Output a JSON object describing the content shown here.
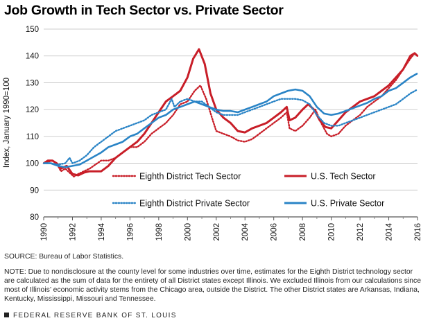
{
  "chart_data": {
    "type": "line",
    "title": "Job Growth in Tech Sector vs. Private Sector",
    "xlabel": "",
    "ylabel": "Index, January 1990=100",
    "xlim": [
      1990,
      2016
    ],
    "ylim": [
      80,
      150
    ],
    "x_ticks": [
      "1990",
      "1992",
      "1994",
      "1996",
      "1998",
      "2000",
      "2002",
      "2004",
      "2006",
      "2008",
      "2010",
      "2012",
      "2014",
      "2016"
    ],
    "y_ticks": [
      "80",
      "90",
      "100",
      "110",
      "120",
      "130",
      "140",
      "150"
    ],
    "grid": "horizontal",
    "legend_placement": "inside-bottom-right",
    "series": [
      {
        "name": "Eighth District Tech Sector",
        "color": "#c81e28",
        "style": "dotted",
        "points": [
          [
            1990.0,
            100
          ],
          [
            1990.3,
            100.5
          ],
          [
            1990.6,
            101
          ],
          [
            1990.9,
            100
          ],
          [
            1991.2,
            97
          ],
          [
            1991.5,
            98
          ],
          [
            1991.8,
            96.5
          ],
          [
            1992.1,
            95
          ],
          [
            1992.4,
            96
          ],
          [
            1992.8,
            97
          ],
          [
            1993.2,
            98
          ],
          [
            1993.6,
            99.5
          ],
          [
            1994.0,
            101
          ],
          [
            1994.5,
            101
          ],
          [
            1995.0,
            102
          ],
          [
            1995.5,
            104
          ],
          [
            1996.0,
            106
          ],
          [
            1996.5,
            106
          ],
          [
            1997.0,
            108
          ],
          [
            1997.5,
            111
          ],
          [
            1998.0,
            113
          ],
          [
            1998.5,
            115
          ],
          [
            1999.0,
            118
          ],
          [
            1999.5,
            122
          ],
          [
            2000.0,
            123
          ],
          [
            2000.5,
            127
          ],
          [
            2000.9,
            129
          ],
          [
            2001.3,
            124
          ],
          [
            2001.7,
            117
          ],
          [
            2002.0,
            112
          ],
          [
            2002.5,
            111
          ],
          [
            2003.0,
            110
          ],
          [
            2003.5,
            108.5
          ],
          [
            2004.0,
            108
          ],
          [
            2004.5,
            109
          ],
          [
            2005.0,
            111
          ],
          [
            2005.5,
            113
          ],
          [
            2006.0,
            115
          ],
          [
            2006.5,
            117
          ],
          [
            2006.9,
            119
          ],
          [
            2007.1,
            113
          ],
          [
            2007.5,
            112
          ],
          [
            2008.0,
            114
          ],
          [
            2008.5,
            117
          ],
          [
            2008.9,
            120
          ],
          [
            2009.3,
            115
          ],
          [
            2009.7,
            111
          ],
          [
            2010.0,
            110
          ],
          [
            2010.5,
            111
          ],
          [
            2011.0,
            114
          ],
          [
            2011.5,
            116
          ],
          [
            2012.0,
            118
          ],
          [
            2012.5,
            121
          ],
          [
            2013.0,
            123
          ],
          [
            2013.5,
            125
          ],
          [
            2014.0,
            128
          ],
          [
            2014.5,
            131
          ],
          [
            2015.0,
            135
          ],
          [
            2015.5,
            139
          ],
          [
            2015.8,
            141
          ],
          [
            2016.0,
            140
          ]
        ]
      },
      {
        "name": "U.S. Tech Sector",
        "color": "#c81e28",
        "style": "solid",
        "points": [
          [
            1990.0,
            100
          ],
          [
            1990.3,
            101
          ],
          [
            1990.6,
            101
          ],
          [
            1990.9,
            100
          ],
          [
            1991.2,
            98
          ],
          [
            1991.6,
            99
          ],
          [
            1992.0,
            96
          ],
          [
            1992.4,
            95.5
          ],
          [
            1992.8,
            96.5
          ],
          [
            1993.2,
            97
          ],
          [
            1993.6,
            97
          ],
          [
            1994.0,
            97
          ],
          [
            1994.5,
            99
          ],
          [
            1995.0,
            102
          ],
          [
            1995.5,
            104
          ],
          [
            1996.0,
            106
          ],
          [
            1996.5,
            108
          ],
          [
            1997.0,
            111
          ],
          [
            1997.5,
            115
          ],
          [
            1998.0,
            119
          ],
          [
            1998.5,
            123
          ],
          [
            1999.0,
            125
          ],
          [
            1999.5,
            127
          ],
          [
            2000.0,
            132
          ],
          [
            2000.4,
            139
          ],
          [
            2000.8,
            142.5
          ],
          [
            2001.2,
            137
          ],
          [
            2001.6,
            126
          ],
          [
            2002.0,
            120
          ],
          [
            2002.5,
            117
          ],
          [
            2003.0,
            115
          ],
          [
            2003.5,
            112
          ],
          [
            2004.0,
            111.5
          ],
          [
            2004.5,
            113
          ],
          [
            2005.0,
            114
          ],
          [
            2005.5,
            115
          ],
          [
            2006.0,
            117
          ],
          [
            2006.5,
            119
          ],
          [
            2006.9,
            121
          ],
          [
            2007.1,
            116
          ],
          [
            2007.5,
            117
          ],
          [
            2008.0,
            120
          ],
          [
            2008.4,
            122
          ],
          [
            2008.8,
            120
          ],
          [
            2009.2,
            116
          ],
          [
            2009.6,
            113.5
          ],
          [
            2010.0,
            113
          ],
          [
            2010.5,
            116
          ],
          [
            2011.0,
            119
          ],
          [
            2011.5,
            121
          ],
          [
            2012.0,
            123
          ],
          [
            2012.5,
            124
          ],
          [
            2013.0,
            125
          ],
          [
            2013.5,
            127
          ],
          [
            2014.0,
            129
          ],
          [
            2014.5,
            132
          ],
          [
            2015.0,
            135
          ],
          [
            2015.5,
            140
          ],
          [
            2015.8,
            141
          ],
          [
            2016.0,
            140
          ]
        ]
      },
      {
        "name": "Eighth District Private Sector",
        "color": "#2a84c6",
        "style": "dotted",
        "points": [
          [
            1990.0,
            100
          ],
          [
            1990.5,
            100
          ],
          [
            1991.0,
            99.5
          ],
          [
            1991.5,
            100
          ],
          [
            1991.8,
            102
          ],
          [
            1992.0,
            100
          ],
          [
            1992.5,
            101
          ],
          [
            1993.0,
            103
          ],
          [
            1993.5,
            106
          ],
          [
            1994.0,
            108
          ],
          [
            1994.5,
            110
          ],
          [
            1995.0,
            112
          ],
          [
            1995.5,
            113
          ],
          [
            1996.0,
            114
          ],
          [
            1996.5,
            115
          ],
          [
            1997.0,
            116
          ],
          [
            1997.5,
            118
          ],
          [
            1998.0,
            119
          ],
          [
            1998.5,
            120
          ],
          [
            1998.9,
            124
          ],
          [
            1999.1,
            121
          ],
          [
            1999.5,
            123
          ],
          [
            2000.0,
            124
          ],
          [
            2000.5,
            123
          ],
          [
            2001.0,
            123
          ],
          [
            2001.5,
            121
          ],
          [
            2002.0,
            119
          ],
          [
            2002.5,
            118
          ],
          [
            2003.0,
            118
          ],
          [
            2003.5,
            118
          ],
          [
            2004.0,
            119
          ],
          [
            2004.5,
            120
          ],
          [
            2005.0,
            121
          ],
          [
            2005.5,
            122
          ],
          [
            2006.0,
            123
          ],
          [
            2006.5,
            124
          ],
          [
            2007.0,
            124
          ],
          [
            2007.5,
            124
          ],
          [
            2008.0,
            123.5
          ],
          [
            2008.5,
            122
          ],
          [
            2009.0,
            118
          ],
          [
            2009.5,
            115
          ],
          [
            2010.0,
            114
          ],
          [
            2010.5,
            114
          ],
          [
            2011.0,
            115
          ],
          [
            2011.5,
            116
          ],
          [
            2012.0,
            117
          ],
          [
            2012.5,
            118
          ],
          [
            2013.0,
            119
          ],
          [
            2013.5,
            120
          ],
          [
            2014.0,
            121
          ],
          [
            2014.5,
            122
          ],
          [
            2015.0,
            124
          ],
          [
            2015.5,
            126
          ],
          [
            2016.0,
            127.5
          ]
        ]
      },
      {
        "name": "U.S. Private Sector",
        "color": "#2a84c6",
        "style": "solid",
        "points": [
          [
            1990.0,
            100
          ],
          [
            1990.5,
            100
          ],
          [
            1991.0,
            99
          ],
          [
            1991.5,
            98.5
          ],
          [
            1992.0,
            99
          ],
          [
            1992.5,
            99.5
          ],
          [
            1993.0,
            101
          ],
          [
            1993.5,
            102.5
          ],
          [
            1994.0,
            104
          ],
          [
            1994.5,
            106
          ],
          [
            1995.0,
            107
          ],
          [
            1995.5,
            108
          ],
          [
            1996.0,
            110
          ],
          [
            1996.5,
            111
          ],
          [
            1997.0,
            113
          ],
          [
            1997.5,
            115
          ],
          [
            1998.0,
            117
          ],
          [
            1998.5,
            118
          ],
          [
            1999.0,
            120
          ],
          [
            1999.5,
            121
          ],
          [
            2000.0,
            122
          ],
          [
            2000.5,
            123
          ],
          [
            2001.0,
            122
          ],
          [
            2001.5,
            121
          ],
          [
            2002.0,
            120
          ],
          [
            2002.5,
            119.5
          ],
          [
            2003.0,
            119.5
          ],
          [
            2003.5,
            119
          ],
          [
            2004.0,
            120
          ],
          [
            2004.5,
            121
          ],
          [
            2005.0,
            122
          ],
          [
            2005.5,
            123
          ],
          [
            2006.0,
            125
          ],
          [
            2006.5,
            126
          ],
          [
            2007.0,
            127
          ],
          [
            2007.5,
            127.5
          ],
          [
            2008.0,
            127
          ],
          [
            2008.5,
            125
          ],
          [
            2009.0,
            121
          ],
          [
            2009.5,
            118.5
          ],
          [
            2010.0,
            118
          ],
          [
            2010.5,
            118.5
          ],
          [
            2011.0,
            119.5
          ],
          [
            2011.5,
            120.5
          ],
          [
            2012.0,
            121.5
          ],
          [
            2012.5,
            122.5
          ],
          [
            2013.0,
            124
          ],
          [
            2013.5,
            125
          ],
          [
            2014.0,
            127
          ],
          [
            2014.5,
            128
          ],
          [
            2015.0,
            130
          ],
          [
            2015.5,
            132
          ],
          [
            2016.0,
            133.5
          ]
        ]
      }
    ]
  },
  "notes": {
    "source": "SOURCE: Bureau of Labor Statistics.",
    "note": "NOTE: Due to nondisclosure at the county level for some industries over time, estimates for the Eighth District technology sector are calculated as the sum of data for the entirety of all District states except Illinois. We excluded Illinois from our calculations since most of Illinois’ economic activity stems from the Chicago area, outside the District. The other District states are Arkansas, Indiana, Kentucky, Mississippi, Missouri and Tennessee."
  },
  "footer": {
    "text": "FEDERAL RESERVE BANK OF ST. LOUIS"
  }
}
